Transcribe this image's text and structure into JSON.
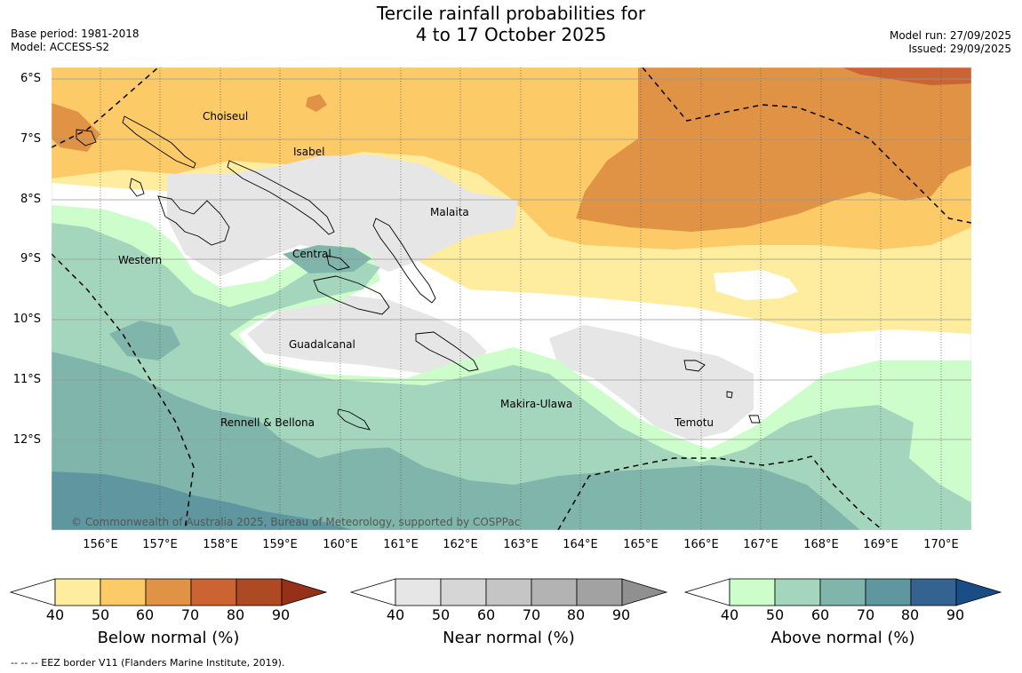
{
  "title": {
    "line1": "Tercile rainfall probabilities for",
    "line2": "4 to 17 October 2025"
  },
  "meta_left": {
    "base_period": "Base period: 1981-2018",
    "model": "Model: ACCESS-S2"
  },
  "meta_right": {
    "model_run": "Model run: 27/09/2025",
    "issued": "Issued: 29/09/2025"
  },
  "lat_labels": [
    "6°S",
    "7°S",
    "8°S",
    "9°S",
    "10°S",
    "11°S",
    "12°S"
  ],
  "lon_labels": [
    "156°E",
    "157°E",
    "158°E",
    "159°E",
    "160°E",
    "161°E",
    "162°E",
    "163°E",
    "164°E",
    "165°E",
    "166°E",
    "167°E",
    "168°E",
    "169°E",
    "170°E"
  ],
  "regions": [
    "Choiseul",
    "Isabel",
    "Malaita",
    "Western",
    "Central",
    "Guadalcanal",
    "Makira-Ulawa",
    "Temotu",
    "Rennell & Bellona"
  ],
  "copyright": "© Commonwealth of Australia 2025, Bureau of Meteorology, supported by COSPPac",
  "colorbars": [
    {
      "title": "Below normal (%)",
      "ticks": [
        "40",
        "50",
        "60",
        "70",
        "80",
        "90"
      ],
      "colors": [
        "#ffffff",
        "#feec9f",
        "#fdca68",
        "#e09245",
        "#cc6333",
        "#ad4a24",
        "#963019"
      ]
    },
    {
      "title": "Near normal (%)",
      "ticks": [
        "40",
        "50",
        "60",
        "70",
        "80",
        "90"
      ],
      "colors": [
        "#ffffff",
        "#e6e6e6",
        "#d6d6d6",
        "#c5c5c5",
        "#b3b3b3",
        "#a2a2a2",
        "#909090"
      ]
    },
    {
      "title": "Above normal (%)",
      "ticks": [
        "40",
        "50",
        "60",
        "70",
        "80",
        "90"
      ],
      "colors": [
        "#ffffff",
        "#cdfdcb",
        "#a3d6bd",
        "#80b5ab",
        "#5f96a0",
        "#356391",
        "#1a4c85"
      ]
    }
  ],
  "footnote": "-- -- -- EEZ border V11 (Flanders Marine Institute, 2019)."
}
